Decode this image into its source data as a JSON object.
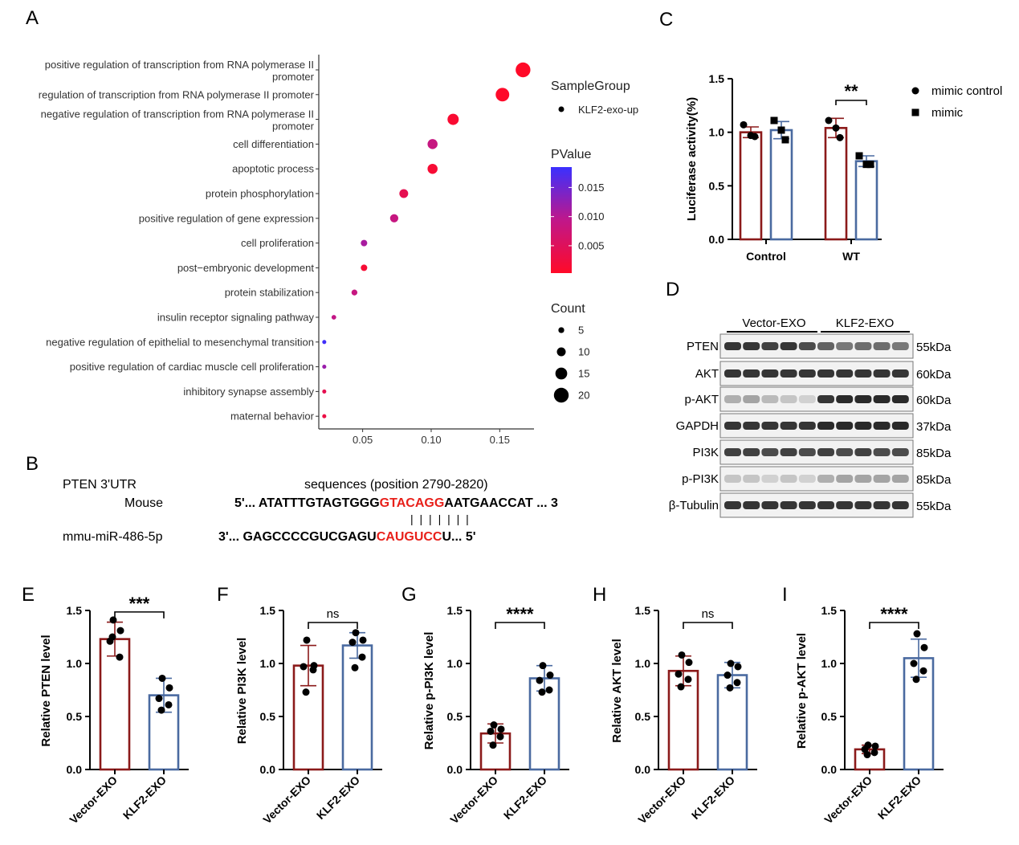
{
  "panel_letters": {
    "a": "A",
    "b": "B",
    "c": "C",
    "d": "D",
    "e": "E",
    "f": "F",
    "g": "G",
    "h": "H",
    "i": "I"
  },
  "colors": {
    "red_bar": "#8B1A1A",
    "blue_bar": "#4A6AA0",
    "pvalue_low": "#FF0A28",
    "pvalue_mid": "#C0178A",
    "pvalue_high": "#3A30FF",
    "seq_highlight": "#E8201A"
  },
  "panel_a": {
    "legend_group_title": "SampleGroup",
    "legend_group_item": "KLF2-exo-up",
    "pvalue_title": "PValue",
    "pvalue_ticks": [
      "0.015",
      "0.010",
      "0.005"
    ],
    "pvalue_tick_values": [
      0.015,
      0.01,
      0.005
    ],
    "pvalue_range": [
      0.0003,
      0.0185
    ],
    "count_title": "Count",
    "count_ticks": [
      "5",
      "10",
      "15",
      "20"
    ],
    "count_tick_values": [
      5,
      10,
      15,
      20
    ]
  },
  "panel_b": {
    "gene_label": "PTEN 3'UTR",
    "species_label": "Mouse",
    "header": "sequences (position 2790-2820)",
    "seq1_prefix": "5'... ATATTTGTAGTGGG",
    "seq1_highlight": "GTACAGG",
    "seq1_suffix": "AATGAACCAT ... 3",
    "pairing": "| | | | | | |",
    "mirna_label": "mmu-miR-486-5p",
    "seq2_prefix": "3'... GAGCCCCGUCGAGU",
    "seq2_highlight": "CAUGUCC",
    "seq2_suffix": "U... 5'"
  },
  "panel_d": {
    "groups": [
      "Vector-EXO",
      "KLF2-EXO"
    ],
    "rows": [
      {
        "protein": "PTEN",
        "size": "55kDa"
      },
      {
        "protein": "AKT",
        "size": "60kDa"
      },
      {
        "protein": "p-AKT",
        "size": "60kDa"
      },
      {
        "protein": "GAPDH",
        "size": "37kDa"
      },
      {
        "protein": "PI3K",
        "size": "85kDa"
      },
      {
        "protein": "p-PI3K",
        "size": "85kDa"
      },
      {
        "protein": "β-Tubulin",
        "size": "55kDa"
      }
    ]
  },
  "chart_data": [
    {
      "panel": "A",
      "type": "scatter",
      "title": "",
      "xlabel": "",
      "ylabel": "",
      "xlim": [
        0.018,
        0.175
      ],
      "xticks": [
        0.05,
        0.1,
        0.15
      ],
      "xtick_labels": [
        "0.05",
        "0.10",
        "0.15"
      ],
      "grid": false,
      "legend": "right",
      "series": [
        {
          "name": "KLF2-exo-up",
          "points": [
            {
              "term": "positive regulation of transcription from RNA polymerase II\npromoter",
              "x": 0.167,
              "count": 20,
              "pvalue": 0.0003
            },
            {
              "term": "regulation of transcription from RNA polymerase II promoter",
              "x": 0.152,
              "count": 18,
              "pvalue": 0.0005
            },
            {
              "term": "negative regulation of transcription from RNA polymerase II\npromoter",
              "x": 0.116,
              "count": 14,
              "pvalue": 0.0012
            },
            {
              "term": "cell differentiation",
              "x": 0.101,
              "count": 12,
              "pvalue": 0.0085
            },
            {
              "term": "apoptotic process",
              "x": 0.101,
              "count": 12,
              "pvalue": 0.0015
            },
            {
              "term": "protein phosphorylation",
              "x": 0.08,
              "count": 10,
              "pvalue": 0.004
            },
            {
              "term": "positive regulation of gene expression",
              "x": 0.073,
              "count": 9,
              "pvalue": 0.0085
            },
            {
              "term": "cell proliferation",
              "x": 0.051,
              "count": 6,
              "pvalue": 0.011
            },
            {
              "term": "post−embryonic development",
              "x": 0.051,
              "count": 6,
              "pvalue": 0.0015
            },
            {
              "term": "protein stabilization",
              "x": 0.044,
              "count": 5,
              "pvalue": 0.0085
            },
            {
              "term": "insulin receptor signaling pathway",
              "x": 0.029,
              "count": 3,
              "pvalue": 0.009
            },
            {
              "term": "negative regulation of epithelial to mesenchymal transition",
              "x": 0.022,
              "count": 2,
              "pvalue": 0.018
            },
            {
              "term": "positive regulation of cardiac muscle cell proliferation",
              "x": 0.022,
              "count": 2,
              "pvalue": 0.012
            },
            {
              "term": "inhibitory synapse assembly",
              "x": 0.022,
              "count": 2,
              "pvalue": 0.004
            },
            {
              "term": "maternal behavior",
              "x": 0.022,
              "count": 2,
              "pvalue": 0.003
            }
          ]
        }
      ]
    },
    {
      "panel": "C",
      "type": "bar",
      "title": "",
      "xlabel": "",
      "ylabel": "Luciferase activity(%)",
      "ylim": [
        0,
        1.5
      ],
      "yticks": [
        "0.0",
        "0.5",
        "1.0",
        "1.5"
      ],
      "categories": [
        "Control",
        "WT"
      ],
      "legend": "right",
      "significance": [
        {
          "category": "WT",
          "label": "**"
        }
      ],
      "series": [
        {
          "name": "mimic control",
          "marker": "circle",
          "values": [
            1.0,
            1.04
          ],
          "errors": [
            0.05,
            0.09
          ],
          "points": [
            [
              1.07,
              0.96,
              0.97
            ],
            [
              1.11,
              0.95,
              1.04
            ]
          ]
        },
        {
          "name": "mimic",
          "marker": "square",
          "values": [
            1.02,
            0.73
          ],
          "errors": [
            0.08,
            0.05
          ],
          "points": [
            [
              1.11,
              0.93,
              1.02
            ],
            [
              0.78,
              0.7,
              0.7
            ]
          ]
        }
      ]
    },
    {
      "panel": "E",
      "type": "bar",
      "title": "",
      "xlabel": "",
      "ylabel": "Relative PTEN level",
      "ylim": [
        0,
        1.5
      ],
      "yticks": [
        "0.0",
        "0.5",
        "1.0",
        "1.5"
      ],
      "categories": [
        "Vector-EXO",
        "KLF2-EXO"
      ],
      "significance": "***",
      "values": [
        1.23,
        0.7
      ],
      "errors": [
        0.16,
        0.16
      ],
      "points": [
        [
          1.41,
          1.31,
          1.21,
          1.06,
          1.25
        ],
        [
          0.86,
          0.77,
          0.67,
          0.61,
          0.56
        ]
      ]
    },
    {
      "panel": "F",
      "type": "bar",
      "title": "",
      "xlabel": "",
      "ylabel": "Relative PI3K level",
      "ylim": [
        0,
        1.5
      ],
      "yticks": [
        "0.0",
        "0.5",
        "1.0",
        "1.5"
      ],
      "categories": [
        "Vector-EXO",
        "KLF2-EXO"
      ],
      "significance": "ns",
      "values": [
        0.98,
        1.17
      ],
      "errors": [
        0.19,
        0.12
      ],
      "points": [
        [
          1.22,
          0.98,
          0.97,
          0.94,
          0.73
        ],
        [
          1.29,
          1.22,
          1.2,
          1.06,
          0.96
        ]
      ]
    },
    {
      "panel": "G",
      "type": "bar",
      "title": "",
      "xlabel": "",
      "ylabel": "Relative p-PI3K level",
      "ylim": [
        0,
        1.5
      ],
      "yticks": [
        "0.0",
        "0.5",
        "1.0",
        "1.5"
      ],
      "categories": [
        "Vector-EXO",
        "KLF2-EXO"
      ],
      "significance": "****",
      "values": [
        0.34,
        0.86
      ],
      "errors": [
        0.09,
        0.12
      ],
      "points": [
        [
          0.42,
          0.38,
          0.36,
          0.31,
          0.23
        ],
        [
          0.98,
          0.89,
          0.84,
          0.75,
          0.73
        ]
      ]
    },
    {
      "panel": "H",
      "type": "bar",
      "title": "",
      "xlabel": "",
      "ylabel": "Relative AKT level",
      "ylim": [
        0,
        1.5
      ],
      "yticks": [
        "0.0",
        "0.5",
        "1.0",
        "1.5"
      ],
      "categories": [
        "Vector-EXO",
        "KLF2-EXO"
      ],
      "significance": "ns",
      "values": [
        0.93,
        0.89
      ],
      "errors": [
        0.14,
        0.12
      ],
      "points": [
        [
          1.08,
          1.01,
          0.9,
          0.85,
          0.78
        ],
        [
          1.0,
          0.97,
          0.89,
          0.82,
          0.77
        ]
      ]
    },
    {
      "panel": "I",
      "type": "bar",
      "title": "",
      "xlabel": "",
      "ylabel": "Relative p-AKT level",
      "ylim": [
        0,
        1.5
      ],
      "yticks": [
        "0.0",
        "0.5",
        "1.0",
        "1.5"
      ],
      "categories": [
        "Vector-EXO",
        "KLF2-EXO"
      ],
      "significance": "****",
      "values": [
        0.19,
        1.05
      ],
      "errors": [
        0.04,
        0.18
      ],
      "points": [
        [
          0.23,
          0.22,
          0.19,
          0.16,
          0.14
        ],
        [
          1.28,
          1.15,
          1.0,
          0.93,
          0.85
        ]
      ]
    }
  ]
}
